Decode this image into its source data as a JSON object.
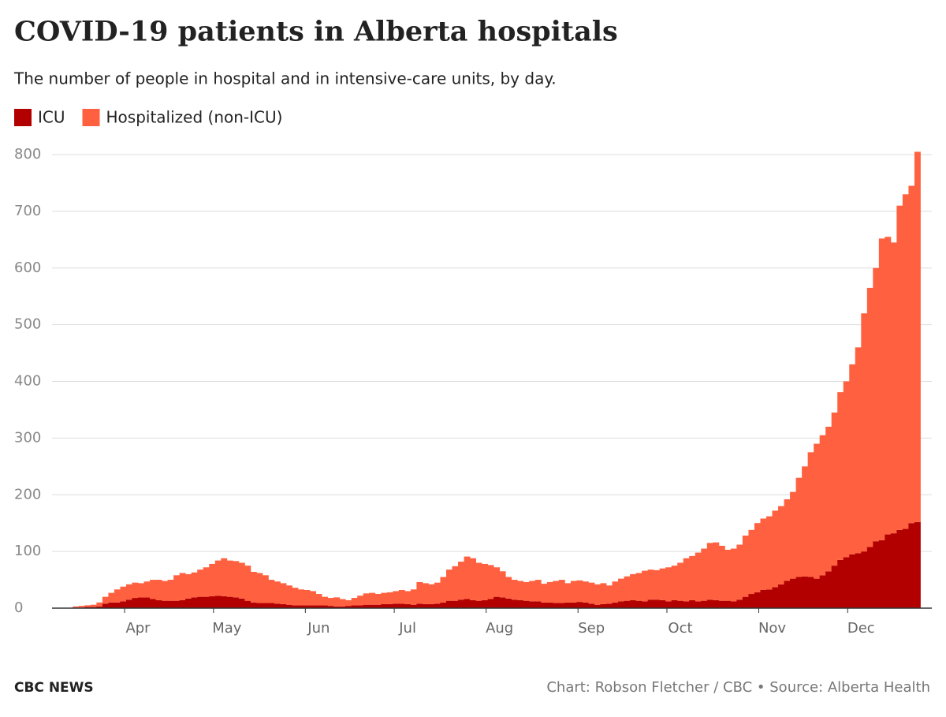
{
  "chart_data": {
    "type": "stacked_bar",
    "title": "COVID-19 patients in Alberta hospitals",
    "subtitle": "The number of people in hospital and in intensive-care units, by day.",
    "brand": "CBC NEWS",
    "source": "Chart: Robson Fletcher / CBC • Source: Alberta Health",
    "x": [
      11,
      13,
      15,
      17,
      19,
      21,
      23,
      25,
      27,
      29,
      31,
      33,
      35,
      37,
      39,
      41,
      43,
      45,
      47,
      49,
      51,
      53,
      55,
      57,
      59,
      61,
      63,
      65,
      67,
      69,
      71,
      73,
      75,
      77,
      79,
      81,
      83,
      85,
      87,
      89,
      91,
      93,
      95,
      97,
      99,
      101,
      103,
      105,
      107,
      109,
      111,
      113,
      115,
      117,
      119,
      121,
      123,
      125,
      127,
      129,
      131,
      133,
      135,
      137,
      139,
      141,
      143,
      145,
      147,
      149,
      151,
      153,
      155,
      157,
      159,
      161,
      163,
      165,
      167,
      169,
      171,
      173,
      175,
      177,
      179,
      181,
      183,
      185,
      187,
      189,
      191,
      193,
      195,
      197,
      199,
      201,
      203,
      205,
      207,
      209,
      211,
      213,
      215,
      217,
      219,
      221,
      223,
      225,
      227,
      229,
      231,
      233,
      235,
      237,
      239,
      241,
      243,
      245,
      247,
      249,
      251,
      253,
      255,
      257,
      259,
      261,
      263,
      265,
      267,
      269,
      271,
      273,
      275,
      277,
      279,
      281,
      283,
      285,
      287,
      289,
      291,
      293,
      295
    ],
    "series": [
      {
        "name": "ICU",
        "color": "#b20000",
        "values": [
          1,
          1,
          2,
          2,
          3,
          8,
          10,
          10,
          12,
          15,
          18,
          19,
          19,
          16,
          14,
          13,
          13,
          13,
          14,
          17,
          19,
          20,
          20,
          21,
          22,
          21,
          20,
          19,
          17,
          13,
          10,
          9,
          9,
          9,
          8,
          7,
          6,
          5,
          5,
          5,
          5,
          5,
          5,
          4,
          3,
          3,
          4,
          5,
          5,
          6,
          6,
          6,
          7,
          7,
          8,
          8,
          7,
          6,
          8,
          7,
          7,
          8,
          10,
          13,
          13,
          15,
          16,
          14,
          13,
          14,
          16,
          20,
          19,
          17,
          15,
          14,
          13,
          12,
          12,
          10,
          10,
          9,
          9,
          10,
          10,
          11,
          10,
          8,
          6,
          7,
          8,
          10,
          12,
          13,
          14,
          13,
          12,
          15,
          15,
          14,
          12,
          14,
          13,
          12,
          14,
          12,
          13,
          15,
          14,
          13,
          13,
          12,
          15,
          20,
          25,
          28,
          32,
          33,
          37,
          42,
          48,
          52,
          55,
          56,
          55,
          52,
          58,
          65,
          75,
          85,
          90,
          95,
          97,
          100,
          108,
          118,
          120,
          130,
          132,
          138,
          140,
          150,
          152
        ]
      },
      {
        "name": "Hospitalized (non-ICU)",
        "color": "#ff6140",
        "values": [
          2,
          3,
          3,
          4,
          7,
          12,
          17,
          23,
          26,
          27,
          27,
          25,
          28,
          34,
          36,
          35,
          37,
          45,
          48,
          43,
          44,
          48,
          52,
          57,
          62,
          67,
          64,
          64,
          63,
          62,
          54,
          53,
          49,
          41,
          39,
          37,
          34,
          31,
          28,
          27,
          25,
          20,
          15,
          14,
          16,
          13,
          10,
          13,
          17,
          20,
          21,
          19,
          20,
          21,
          22,
          24,
          23,
          27,
          38,
          37,
          35,
          37,
          45,
          55,
          61,
          67,
          75,
          74,
          67,
          64,
          60,
          52,
          46,
          38,
          35,
          34,
          33,
          36,
          38,
          33,
          36,
          39,
          41,
          34,
          38,
          38,
          37,
          37,
          36,
          37,
          32,
          37,
          40,
          43,
          46,
          49,
          54,
          53,
          52,
          56,
          60,
          61,
          67,
          76,
          78,
          86,
          92,
          100,
          102,
          97,
          90,
          93,
          97,
          108,
          113,
          122,
          126,
          129,
          135,
          138,
          144,
          153,
          175,
          194,
          220,
          238,
          247,
          255,
          270,
          296,
          310,
          335,
          363,
          420,
          457,
          482,
          532,
          525,
          513,
          572,
          590,
          595,
          653
        ]
      }
    ],
    "xlim": [
      3,
      298
    ],
    "xticks": [
      {
        "value": 32,
        "label": "Apr"
      },
      {
        "value": 62,
        "label": "May"
      },
      {
        "value": 93,
        "label": "Jun"
      },
      {
        "value": 123,
        "label": "Jul"
      },
      {
        "value": 154,
        "label": "Aug"
      },
      {
        "value": 185,
        "label": "Sep"
      },
      {
        "value": 215,
        "label": "Oct"
      },
      {
        "value": 246,
        "label": "Nov"
      },
      {
        "value": 276,
        "label": "Dec"
      }
    ],
    "ylim": [
      0,
      800
    ],
    "yticks": [
      0,
      100,
      200,
      300,
      400,
      500,
      600,
      700,
      800
    ],
    "grid": true
  }
}
